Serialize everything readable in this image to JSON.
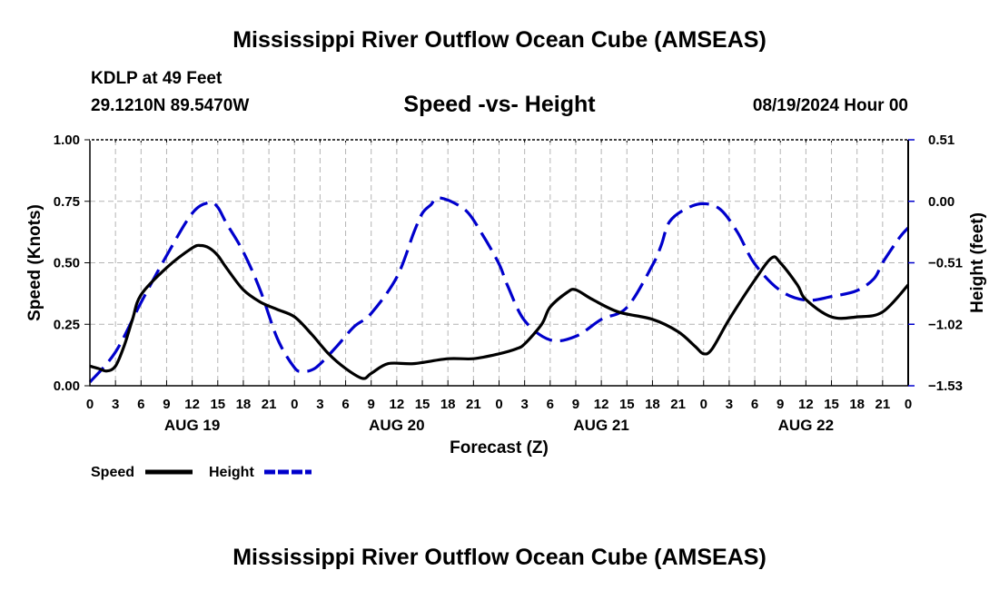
{
  "title": "Mississippi River Outflow Ocean Cube (AMSEAS)",
  "station": "KDLP at 49 Feet",
  "coordinates": "29.1210N  89.5470W",
  "subtitle": "Speed -vs- Height",
  "datestamp": "08/19/2024 Hour 00",
  "footer_title": "Mississippi River Outflow Ocean Cube (AMSEAS)",
  "chart_data": {
    "type": "line",
    "title": "Speed -vs- Height",
    "xlabel": "Forecast (Z)",
    "ylabel": "Speed (Knots)",
    "y2label": "Height (feet)",
    "xlim": [
      0,
      96
    ],
    "ylim": [
      0,
      1
    ],
    "y2lim": [
      -1.53,
      0.51
    ],
    "x_tick_values": [
      0,
      3,
      6,
      9,
      12,
      15,
      18,
      21,
      24,
      27,
      30,
      33,
      36,
      39,
      42,
      45,
      48,
      51,
      54,
      57,
      60,
      63,
      66,
      69,
      72,
      75,
      78,
      81,
      84,
      87,
      90,
      93,
      96
    ],
    "x_tick_labels": [
      "0",
      "3",
      "6",
      "9",
      "12",
      "15",
      "18",
      "21",
      "0",
      "3",
      "6",
      "9",
      "12",
      "15",
      "18",
      "21",
      "0",
      "3",
      "6",
      "9",
      "12",
      "15",
      "18",
      "21",
      "0",
      "3",
      "6",
      "9",
      "12",
      "15",
      "18",
      "21",
      "0"
    ],
    "day_labels": [
      {
        "x": 12,
        "label": "AUG 19"
      },
      {
        "x": 36,
        "label": "AUG 20"
      },
      {
        "x": 60,
        "label": "AUG 21"
      },
      {
        "x": 84,
        "label": "AUG 22"
      }
    ],
    "y_ticks": [
      {
        "value": 0.0,
        "label": "0.00"
      },
      {
        "value": 0.25,
        "label": "0.25"
      },
      {
        "value": 0.5,
        "label": "0.50"
      },
      {
        "value": 0.75,
        "label": "0.75"
      },
      {
        "value": 1.0,
        "label": "1.00"
      }
    ],
    "y2_ticks": [
      {
        "value": -1.53,
        "label": "−1.53"
      },
      {
        "value": -1.02,
        "label": "−1.02"
      },
      {
        "value": -0.51,
        "label": "−0.51"
      },
      {
        "value": 0.0,
        "label": "0.00"
      },
      {
        "value": 0.51,
        "label": "0.51"
      }
    ],
    "grid": true,
    "legend_position": "bottom-left",
    "series": [
      {
        "name": "Speed",
        "axis": "left",
        "color": "#000000",
        "dash": "solid",
        "x": [
          0,
          1,
          2,
          3,
          4,
          5,
          6,
          9,
          12,
          13,
          14,
          15,
          16,
          18,
          20,
          22,
          24,
          26,
          28,
          30,
          32,
          33,
          35,
          38,
          42,
          45,
          48,
          50,
          51,
          53,
          54,
          56,
          57,
          59,
          62,
          66,
          69,
          71,
          72,
          73,
          75,
          78,
          80,
          81,
          83,
          84,
          87,
          90,
          93,
          96
        ],
        "values": [
          0.08,
          0.07,
          0.06,
          0.08,
          0.16,
          0.27,
          0.37,
          0.48,
          0.56,
          0.57,
          0.56,
          0.53,
          0.48,
          0.39,
          0.34,
          0.31,
          0.28,
          0.21,
          0.13,
          0.07,
          0.03,
          0.05,
          0.09,
          0.09,
          0.11,
          0.11,
          0.13,
          0.15,
          0.17,
          0.25,
          0.32,
          0.38,
          0.39,
          0.35,
          0.3,
          0.27,
          0.22,
          0.16,
          0.13,
          0.15,
          0.27,
          0.43,
          0.52,
          0.5,
          0.41,
          0.35,
          0.28,
          0.28,
          0.3,
          0.41
        ]
      },
      {
        "name": "Height",
        "axis": "right",
        "color": "#0000cc",
        "dash": "dashed",
        "x": [
          0,
          3,
          6,
          9,
          12,
          14,
          15,
          16,
          18,
          20,
          22,
          24,
          25,
          26,
          27,
          29,
          31,
          33,
          36,
          38,
          39,
          40,
          41,
          44,
          46,
          48,
          49,
          51,
          54,
          57,
          60,
          63,
          66,
          67,
          68,
          70,
          72,
          74,
          76,
          78,
          81,
          84,
          87,
          90,
          92,
          93,
          95,
          96
        ],
        "values": [
          -1.5,
          -1.25,
          -0.84,
          -0.45,
          -0.1,
          -0.01,
          -0.05,
          -0.18,
          -0.42,
          -0.74,
          -1.14,
          -1.38,
          -1.41,
          -1.4,
          -1.35,
          -1.2,
          -1.04,
          -0.93,
          -0.63,
          -0.26,
          -0.1,
          -0.03,
          0.03,
          -0.07,
          -0.27,
          -0.52,
          -0.7,
          -0.99,
          -1.15,
          -1.12,
          -0.98,
          -0.88,
          -0.53,
          -0.37,
          -0.17,
          -0.06,
          -0.02,
          -0.07,
          -0.26,
          -0.52,
          -0.74,
          -0.82,
          -0.79,
          -0.74,
          -0.64,
          -0.51,
          -0.3,
          -0.22
        ]
      }
    ]
  }
}
